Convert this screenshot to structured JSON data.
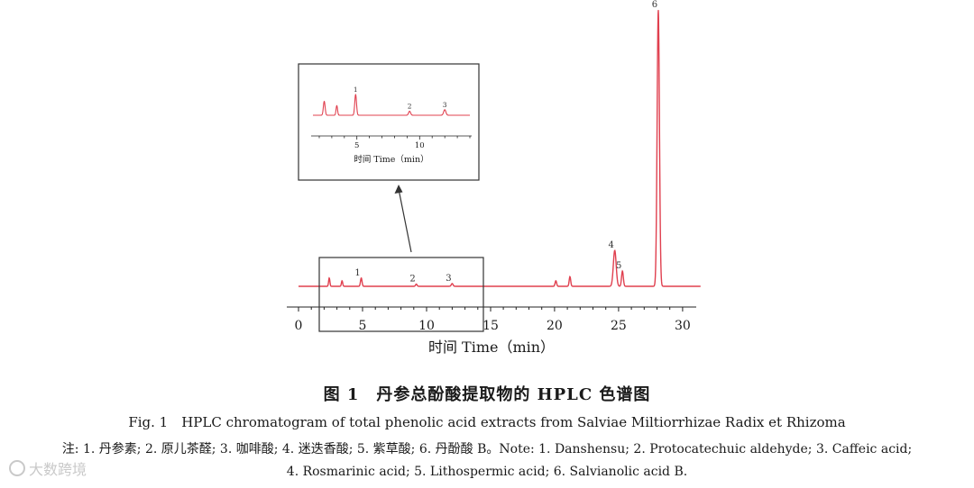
{
  "chart_data": [
    {
      "type": "line",
      "xlabel": "时间 Time（min）",
      "x_ticks": [
        0,
        5,
        10,
        15,
        20,
        25,
        30
      ],
      "xlim": [
        0,
        30.5
      ],
      "line_color": "#e0404f",
      "peaks": [
        {
          "x": 2.4,
          "h": 0.03,
          "w": 0.05,
          "label": ""
        },
        {
          "x": 3.4,
          "h": 0.02,
          "w": 0.05,
          "label": ""
        },
        {
          "x": 4.9,
          "h": 0.03,
          "w": 0.06,
          "label": "1"
        },
        {
          "x": 9.2,
          "h": 0.008,
          "w": 0.06,
          "label": "2"
        },
        {
          "x": 12.0,
          "h": 0.01,
          "w": 0.07,
          "label": "3"
        },
        {
          "x": 20.1,
          "h": 0.02,
          "w": 0.06,
          "label": ""
        },
        {
          "x": 21.2,
          "h": 0.035,
          "w": 0.06,
          "label": ""
        },
        {
          "x": 24.7,
          "h": 0.13,
          "w": 0.11,
          "label": "4"
        },
        {
          "x": 25.3,
          "h": 0.055,
          "w": 0.07,
          "label": "5"
        },
        {
          "x": 28.1,
          "h": 1.0,
          "w": 0.09,
          "label": "6"
        }
      ]
    },
    {
      "type": "line",
      "xlabel": "时间 Time（min）",
      "x_ticks": [
        5,
        10
      ],
      "xlim": [
        1.5,
        14
      ],
      "line_color": "#e0404f",
      "peaks": [
        {
          "x": 2.4,
          "h": 0.55,
          "w": 0.07,
          "label": ""
        },
        {
          "x": 3.4,
          "h": 0.38,
          "w": 0.06,
          "label": ""
        },
        {
          "x": 4.9,
          "h": 0.82,
          "w": 0.07,
          "label": "1"
        },
        {
          "x": 9.2,
          "h": 0.16,
          "w": 0.08,
          "label": "2"
        },
        {
          "x": 12.0,
          "h": 0.22,
          "w": 0.09,
          "label": "3"
        }
      ]
    }
  ],
  "caption": {
    "title_cn": "图 1　丹参总酚酸提取物的 HPLC 色谱图",
    "title_en": "Fig. 1　HPLC chromatogram of total phenolic acid extracts from Salviae Miltiorrhizae Radix et Rhizoma",
    "note_line1": "注: 1. 丹参素; 2. 原儿茶醛; 3. 咖啡酸; 4. 迷迭香酸; 5. 紫草酸; 6. 丹酚酸 B。Note: 1. Danshensu; 2. Protocatechuic aldehyde; 3. Caffeic acid;",
    "note_line2": "4. Rosmarinic acid; 5. Lithospermic acid; 6. Salvianolic acid B."
  },
  "watermark": {
    "text": "大数跨境",
    "icon": "brand-logo-icon"
  }
}
